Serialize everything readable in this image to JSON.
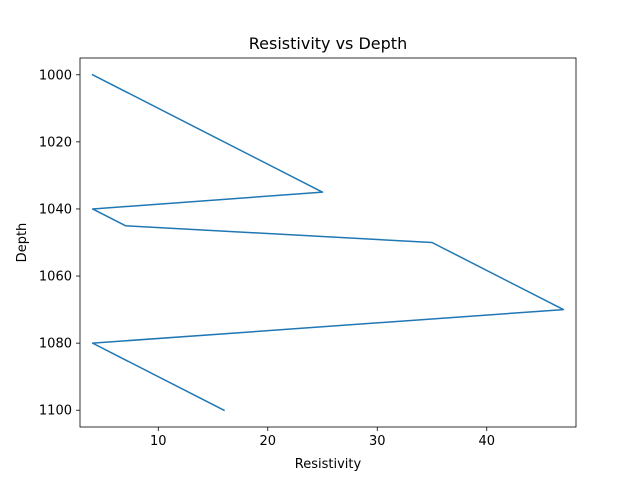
{
  "chart_data": {
    "type": "line",
    "title": "Resistivity vs Depth",
    "xlabel": "Resistivity",
    "ylabel": "Depth",
    "xlim": [
      2.85,
      48.15
    ],
    "ylim": [
      1105,
      995
    ],
    "y_inverted": true,
    "grid": false,
    "x_ticks": [
      10,
      20,
      30,
      40
    ],
    "y_ticks": [
      1000,
      1020,
      1040,
      1060,
      1080,
      1100
    ],
    "series": [
      {
        "color": "#1f77b4",
        "x": [
          4,
          25,
          4,
          7,
          35,
          47,
          4,
          16
        ],
        "y": [
          1000,
          1035,
          1040,
          1045,
          1050,
          1070,
          1080,
          1100
        ]
      }
    ]
  }
}
